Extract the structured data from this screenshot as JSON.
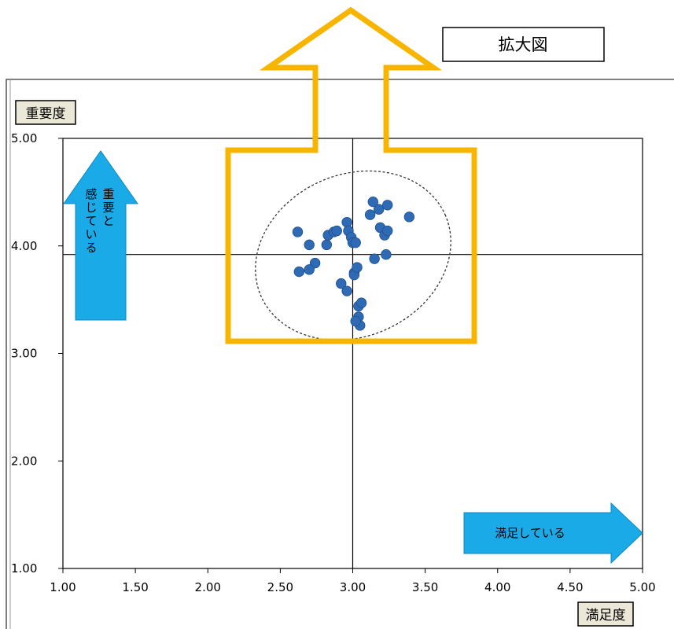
{
  "callout": {
    "label": "拡大図"
  },
  "chart_data": {
    "type": "scatter",
    "xlabel": "満足度",
    "ylabel": "重要度",
    "xlim": [
      1.0,
      5.0
    ],
    "ylim": [
      1.0,
      5.0
    ],
    "x_ticks": [
      "1.00",
      "1.50",
      "2.00",
      "2.50",
      "3.00",
      "3.50",
      "4.00",
      "4.50",
      "5.00"
    ],
    "y_ticks": [
      "5.00",
      "4.00",
      "3.00",
      "2.00",
      "1.00"
    ],
    "reference_lines": {
      "x": 3.0,
      "y": 3.92
    },
    "annotations": {
      "up_arrow": "重要と感じている",
      "right_arrow": "満足している"
    },
    "grid": false,
    "marker_color": "#2f6bb5",
    "arrow_color": "#1aaae8",
    "highlight_color": "#f7b500",
    "x": [
      2.62,
      2.7,
      2.74,
      2.7,
      2.82,
      2.83,
      2.87,
      2.89,
      2.63,
      2.92,
      2.96,
      2.96,
      2.97,
      2.99,
      3.0,
      3.01,
      3.01,
      3.03,
      3.02,
      3.04,
      3.06,
      3.04,
      3.05,
      3.02,
      3.12,
      3.14,
      3.18,
      3.19,
      3.22,
      3.24,
      3.24,
      3.23,
      3.15,
      3.39
    ],
    "y": [
      4.13,
      4.01,
      3.84,
      3.78,
      4.01,
      4.1,
      4.13,
      4.14,
      3.76,
      3.65,
      3.58,
      4.22,
      4.14,
      4.08,
      4.03,
      3.75,
      3.73,
      3.8,
      4.03,
      3.44,
      3.47,
      3.34,
      3.26,
      3.3,
      4.29,
      4.41,
      4.34,
      4.17,
      4.1,
      4.38,
      4.14,
      3.92,
      3.88,
      4.27
    ]
  }
}
